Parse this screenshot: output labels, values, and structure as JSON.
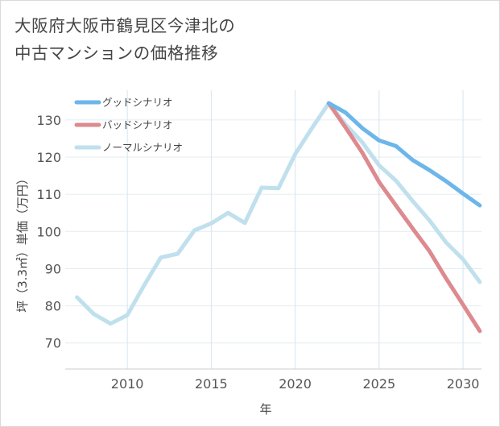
{
  "title_lines": [
    "大阪府大阪市鶴見区今津北の",
    "中古マンションの価格推移"
  ],
  "chart_data": {
    "type": "line",
    "title": "大阪府大阪市鶴見区今津北の中古マンションの価格推移",
    "xlabel": "年",
    "ylabel": "坪（3.3㎡）単価（万円）",
    "xlim": [
      2006.3,
      2031.1
    ],
    "ylim": [
      63,
      138
    ],
    "x_ticks": [
      2010,
      2015,
      2020,
      2025,
      2030
    ],
    "y_ticks": [
      70,
      80,
      90,
      100,
      110,
      120,
      130
    ],
    "grid": true,
    "legend_position": "top-left",
    "series": [
      {
        "name": "グッドシナリオ",
        "color": "#6cb6ea",
        "x": [
          2022,
          2023,
          2024,
          2025,
          2026,
          2027,
          2028,
          2029,
          2030,
          2031
        ],
        "y": [
          134.5,
          132.0,
          127.8,
          124.5,
          123.0,
          119.2,
          116.5,
          113.5,
          110.2,
          107.0
        ]
      },
      {
        "name": "バッドシナリオ",
        "color": "#dd8a8f",
        "x": [
          2022,
          2023,
          2024,
          2025,
          2026,
          2027,
          2028,
          2029,
          2030,
          2031
        ],
        "y": [
          134.5,
          128.0,
          121.2,
          113.3,
          107.0,
          100.8,
          94.7,
          87.3,
          80.3,
          73.2
        ]
      },
      {
        "name": "ノーマルシナリオ",
        "color": "#bfe0ec",
        "x": [
          2007,
          2008,
          2009,
          2010,
          2011,
          2012,
          2013,
          2014,
          2015,
          2016,
          2017,
          2018,
          2019,
          2020,
          2021,
          2022,
          2023,
          2024,
          2025,
          2026,
          2027,
          2028,
          2029,
          2030,
          2031
        ],
        "y": [
          82.3,
          77.8,
          75.2,
          77.5,
          85.5,
          93.0,
          94.0,
          100.3,
          102.2,
          105.0,
          102.3,
          111.8,
          111.6,
          120.8,
          127.8,
          134.5,
          128.8,
          124.0,
          117.8,
          113.7,
          108.2,
          103.0,
          97.0,
          92.5,
          86.4
        ]
      }
    ]
  }
}
